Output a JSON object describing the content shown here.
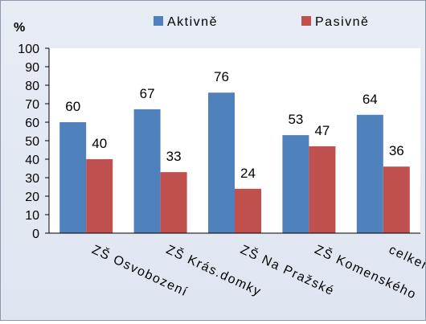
{
  "chart_data": {
    "type": "bar",
    "ylabel": "%",
    "ylim": [
      0,
      100
    ],
    "yticks": [
      0,
      10,
      20,
      30,
      40,
      50,
      60,
      70,
      80,
      90,
      100
    ],
    "categories": [
      "ZŠ Osvobození",
      "ZŠ Krás.domky",
      "ZŠ Na Pražské",
      "ZŠ Komenského",
      "celkem"
    ],
    "series": [
      {
        "name": "Aktivně",
        "color": "#4f81bd",
        "values": [
          60,
          67,
          76,
          53,
          64
        ]
      },
      {
        "name": "Pasivně",
        "color": "#c0504d",
        "values": [
          40,
          33,
          24,
          47,
          36
        ]
      }
    ],
    "legend_position": "top",
    "grid": false
  }
}
